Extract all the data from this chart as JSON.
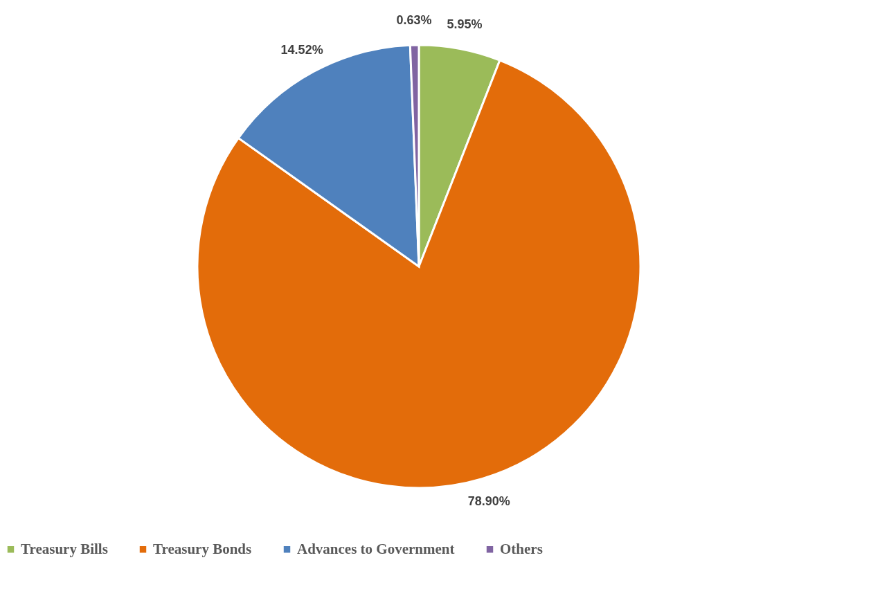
{
  "chart_data": {
    "type": "pie",
    "categories": [
      "Treasury Bills",
      "Treasury Bonds",
      "Advances to Government",
      "Others"
    ],
    "values": [
      5.95,
      78.9,
      14.52,
      0.63
    ],
    "colors": [
      "#9bbb59",
      "#e36c0a",
      "#4f81bd",
      "#8064a2"
    ],
    "value_labels": [
      "5.95%",
      "78.90%",
      "14.52%",
      "0.63%"
    ],
    "legend": "bottom"
  }
}
